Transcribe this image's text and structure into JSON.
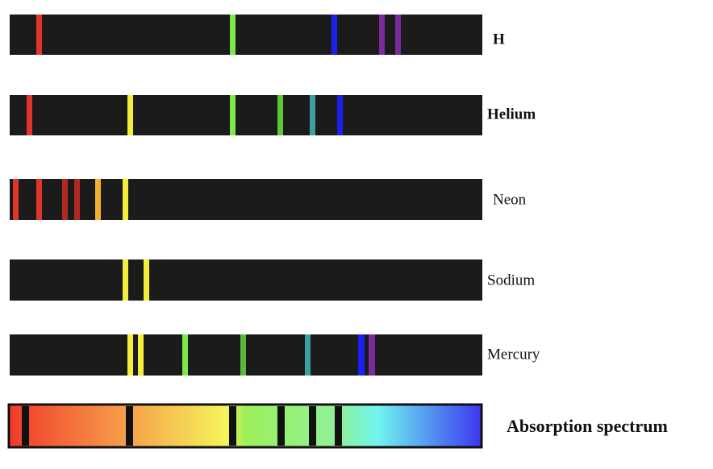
{
  "spectra": [
    {
      "label": "H"
    },
    {
      "label": "Helium"
    },
    {
      "label": "Neon"
    },
    {
      "label": "Sodium"
    },
    {
      "label": "Mercury"
    }
  ],
  "absorption": {
    "label": "Absorption spectrum"
  }
}
